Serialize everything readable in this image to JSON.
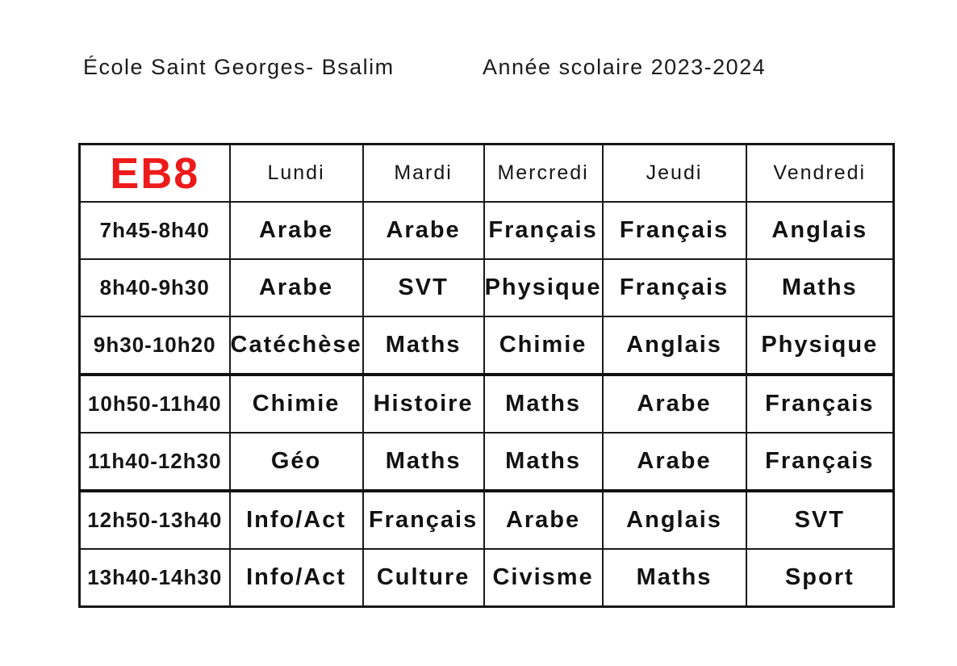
{
  "header": {
    "school": "École Saint Georges- Bsalim",
    "year": "Année scolaire 2023-2024"
  },
  "timetable": {
    "class_label": "EB8",
    "class_color": "#ed1b1b",
    "days": [
      "Lundi",
      "Mardi",
      "Mercredi",
      "Jeudi",
      "Vendredi"
    ],
    "rows": [
      {
        "time": "7h45-8h40",
        "subjects": [
          "Arabe",
          "Arabe",
          "Français",
          "Français",
          "Anglais"
        ],
        "thick_top": false
      },
      {
        "time": "8h40-9h30",
        "subjects": [
          "Arabe",
          "SVT",
          "Physique",
          "Français",
          "Maths"
        ],
        "thick_top": false
      },
      {
        "time": "9h30-10h20",
        "subjects": [
          "Catéchèse",
          "Maths",
          "Chimie",
          "Anglais",
          "Physique"
        ],
        "thick_top": false
      },
      {
        "time": "10h50-11h40",
        "subjects": [
          "Chimie",
          "Histoire",
          "Maths",
          "Arabe",
          "Français"
        ],
        "thick_top": true
      },
      {
        "time": "11h40-12h30",
        "subjects": [
          "Géo",
          "Maths",
          "Maths",
          "Arabe",
          "Français"
        ],
        "thick_top": false
      },
      {
        "time": "12h50-13h40",
        "subjects": [
          "Info/Act",
          "Français",
          "Arabe",
          "Anglais",
          "SVT"
        ],
        "thick_top": true
      },
      {
        "time": "13h40-14h30",
        "subjects": [
          "Info/Act",
          "Culture",
          "Civisme",
          "Maths",
          "Sport"
        ],
        "thick_top": false
      }
    ]
  }
}
